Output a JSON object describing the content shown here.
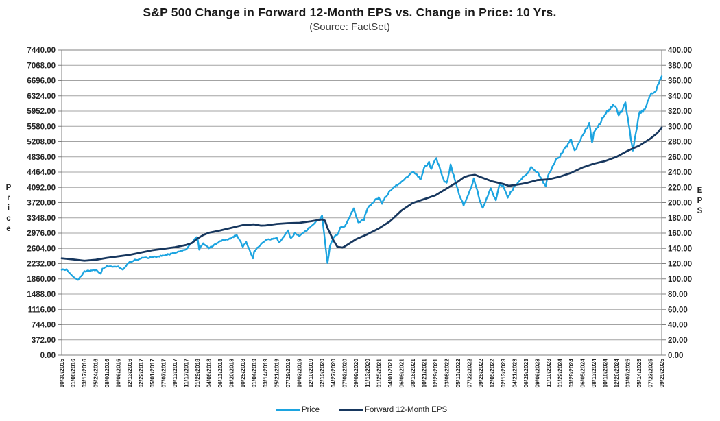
{
  "title": "S&P 500 Change in Forward 12-Month EPS vs. Change in Price: 10 Yrs.",
  "subtitle": "(Source: FactSet)",
  "colors": {
    "price_line": "#1CA4E0",
    "eps_line": "#17375E",
    "grid": "#a3a3a3",
    "axis": "#808080",
    "tick_text": "#262626"
  },
  "chart_data": {
    "type": "line",
    "title": "S&P 500 Change in Forward 12-Month EPS vs. Change in Price: 10 Yrs.",
    "subtitle": "(Source: FactSet)",
    "grid": "horizontal gridlines only",
    "legend_position": "bottom center",
    "left_axis": {
      "label": "Price",
      "min": 0,
      "max": 7440,
      "step": 372,
      "ticks": [
        "7440.00",
        "7068.00",
        "6696.00",
        "6324.00",
        "5952.00",
        "5580.00",
        "5208.00",
        "4836.00",
        "4464.00",
        "4092.00",
        "3720.00",
        "3348.00",
        "2976.00",
        "2604.00",
        "2232.00",
        "1860.00",
        "1488.00",
        "1116.00",
        "744.00",
        "372.00",
        "0.00"
      ]
    },
    "right_axis": {
      "label": "EPS",
      "min": 0,
      "max": 400,
      "step": 20,
      "ticks": [
        "400.00",
        "380.00",
        "360.00",
        "340.00",
        "320.00",
        "300.00",
        "280.00",
        "260.00",
        "240.00",
        "220.00",
        "200.00",
        "180.00",
        "160.00",
        "140.00",
        "120.00",
        "100.00",
        "80.00",
        "60.00",
        "40.00",
        "20.00",
        "0.00"
      ]
    },
    "x_tick_labels": [
      "10/30/2015",
      "01/08/2016",
      "03/17/2016",
      "05/24/2016",
      "08/01/2016",
      "10/06/2016",
      "12/13/2016",
      "02/22/2017",
      "05/01/2017",
      "07/07/2017",
      "09/13/2017",
      "11/17/2017",
      "01/29/2018",
      "04/06/2018",
      "06/13/2018",
      "08/20/2018",
      "10/25/2018",
      "01/04/2019",
      "03/14/2019",
      "05/21/2019",
      "07/29/2019",
      "10/03/2019",
      "12/10/2019",
      "02/19/2020",
      "04/27/2020",
      "07/02/2020",
      "09/09/2020",
      "11/13/2020",
      "01/25/2021",
      "04/01/2021",
      "06/09/2021",
      "08/16/2021",
      "10/21/2021",
      "12/29/2021",
      "03/08/2022",
      "05/13/2022",
      "07/22/2022",
      "09/28/2022",
      "12/05/2022",
      "02/13/2023",
      "04/21/2023",
      "06/29/2023",
      "09/06/2023",
      "11/10/2023",
      "01/22/2024",
      "03/28/2024",
      "06/05/2024",
      "08/13/2024",
      "10/18/2024",
      "12/26/2024",
      "03/07/2025",
      "05/14/2025",
      "07/23/2025",
      "09/29/2025"
    ],
    "x_note": "series points are [x_tick_index 0-53, value]; ticks are weekly data every ~10 weeks",
    "series": [
      {
        "name": "Price",
        "axis": "left",
        "color": "#1CA4E0",
        "points": [
          [
            0,
            2079
          ],
          [
            0.4,
            2090
          ],
          [
            1,
            1922
          ],
          [
            1.45,
            1829
          ],
          [
            2,
            2040
          ],
          [
            3,
            2076
          ],
          [
            3.45,
            1991
          ],
          [
            3.6,
            2098
          ],
          [
            4,
            2170
          ],
          [
            5,
            2160
          ],
          [
            5.4,
            2085
          ],
          [
            6,
            2271
          ],
          [
            7,
            2362
          ],
          [
            8,
            2388
          ],
          [
            9,
            2425
          ],
          [
            10,
            2498
          ],
          [
            11,
            2578
          ],
          [
            11.9,
            2873
          ],
          [
            12,
            2853
          ],
          [
            12.15,
            2581
          ],
          [
            12.5,
            2728
          ],
          [
            13,
            2604
          ],
          [
            14,
            2775
          ],
          [
            15,
            2857
          ],
          [
            15.45,
            2931
          ],
          [
            16,
            2656
          ],
          [
            16.3,
            2760
          ],
          [
            16.9,
            2351
          ],
          [
            17,
            2532
          ],
          [
            18,
            2808
          ],
          [
            19,
            2864
          ],
          [
            19.2,
            2744
          ],
          [
            20,
            3021
          ],
          [
            20.25,
            2840
          ],
          [
            20.6,
            2978
          ],
          [
            21,
            2910
          ],
          [
            22,
            3132
          ],
          [
            23,
            3386
          ],
          [
            23.48,
            2237
          ],
          [
            23.7,
            2659
          ],
          [
            24,
            2878
          ],
          [
            24.4,
            2955
          ],
          [
            24.6,
            3115
          ],
          [
            25,
            3130
          ],
          [
            25.8,
            3580
          ],
          [
            26,
            3399
          ],
          [
            26.2,
            3237
          ],
          [
            26.7,
            3310
          ],
          [
            27,
            3585
          ],
          [
            28,
            3855
          ],
          [
            28.3,
            3714
          ],
          [
            29,
            4020
          ],
          [
            30,
            4219
          ],
          [
            31,
            4480
          ],
          [
            31.75,
            4300
          ],
          [
            32,
            4550
          ],
          [
            32.45,
            4698
          ],
          [
            32.65,
            4538
          ],
          [
            33,
            4793
          ],
          [
            33.1,
            4797
          ],
          [
            33.8,
            4226
          ],
          [
            34,
            4171
          ],
          [
            34.35,
            4631
          ],
          [
            35,
            4024
          ],
          [
            35.1,
            3901
          ],
          [
            35.5,
            3667
          ],
          [
            36,
            3962
          ],
          [
            36.4,
            4305
          ],
          [
            37,
            3719
          ],
          [
            37.2,
            3577
          ],
          [
            37.9,
            4080
          ],
          [
            38,
            3999
          ],
          [
            38.35,
            3783
          ],
          [
            38.7,
            4180
          ],
          [
            39,
            4137
          ],
          [
            39.4,
            3856
          ],
          [
            40,
            4133
          ],
          [
            41,
            4396
          ],
          [
            41.45,
            4589
          ],
          [
            42,
            4465
          ],
          [
            42.75,
            4117
          ],
          [
            43,
            4415
          ],
          [
            43.7,
            4783
          ],
          [
            44,
            4850
          ],
          [
            45,
            5254
          ],
          [
            45.3,
            4967
          ],
          [
            46,
            5354
          ],
          [
            46.6,
            5667
          ],
          [
            46.85,
            5186
          ],
          [
            47,
            5434
          ],
          [
            48,
            5865
          ],
          [
            48.7,
            6090
          ],
          [
            49,
            6038
          ],
          [
            49.2,
            5827
          ],
          [
            49.8,
            6147
          ],
          [
            50,
            5770
          ],
          [
            50.45,
            4983
          ],
          [
            51,
            5893
          ],
          [
            51.5,
            5968
          ],
          [
            52,
            6359
          ],
          [
            52.5,
            6466
          ],
          [
            53,
            6800
          ]
        ]
      },
      {
        "name": "Forward 12-Month EPS",
        "axis": "right",
        "color": "#17375E",
        "points": [
          [
            0,
            127
          ],
          [
            1,
            125.5
          ],
          [
            2,
            123.8
          ],
          [
            3,
            125
          ],
          [
            4,
            127.5
          ],
          [
            5,
            129.5
          ],
          [
            6,
            131.5
          ],
          [
            7,
            134.5
          ],
          [
            8,
            137.5
          ],
          [
            9,
            139.5
          ],
          [
            10,
            141.5
          ],
          [
            11,
            144.5
          ],
          [
            11.5,
            147
          ],
          [
            12,
            153
          ],
          [
            12.5,
            157.5
          ],
          [
            13,
            160.5
          ],
          [
            14,
            163.5
          ],
          [
            15,
            167
          ],
          [
            16,
            170.5
          ],
          [
            17,
            171.5
          ],
          [
            17.6,
            169.8
          ],
          [
            18,
            170
          ],
          [
            19,
            172
          ],
          [
            20,
            173
          ],
          [
            21,
            173.5
          ],
          [
            22,
            175.5
          ],
          [
            23,
            178
          ],
          [
            23.25,
            176.5
          ],
          [
            23.5,
            166
          ],
          [
            24,
            150.5
          ],
          [
            24.35,
            142
          ],
          [
            24.8,
            141
          ],
          [
            25,
            142.5
          ],
          [
            26,
            152
          ],
          [
            27,
            158.5
          ],
          [
            28,
            166
          ],
          [
            29,
            175.5
          ],
          [
            30,
            189.5
          ],
          [
            31,
            199.5
          ],
          [
            32,
            204.5
          ],
          [
            33,
            209.5
          ],
          [
            34,
            218.5
          ],
          [
            35,
            227.5
          ],
          [
            35.55,
            233.5
          ],
          [
            36,
            235.5
          ],
          [
            36.5,
            236.5
          ],
          [
            37,
            233.5
          ],
          [
            38,
            228
          ],
          [
            39,
            224.5
          ],
          [
            39.5,
            222
          ],
          [
            40,
            223
          ],
          [
            41,
            225.5
          ],
          [
            42,
            229.5
          ],
          [
            43,
            230.5
          ],
          [
            44,
            234
          ],
          [
            45,
            239
          ],
          [
            46,
            246
          ],
          [
            47,
            251
          ],
          [
            48,
            254.5
          ],
          [
            49,
            260
          ],
          [
            50,
            268
          ],
          [
            50.6,
            272
          ],
          [
            51,
            274.5
          ],
          [
            52,
            284
          ],
          [
            52.6,
            291
          ],
          [
            53,
            298.5
          ]
        ]
      }
    ]
  }
}
